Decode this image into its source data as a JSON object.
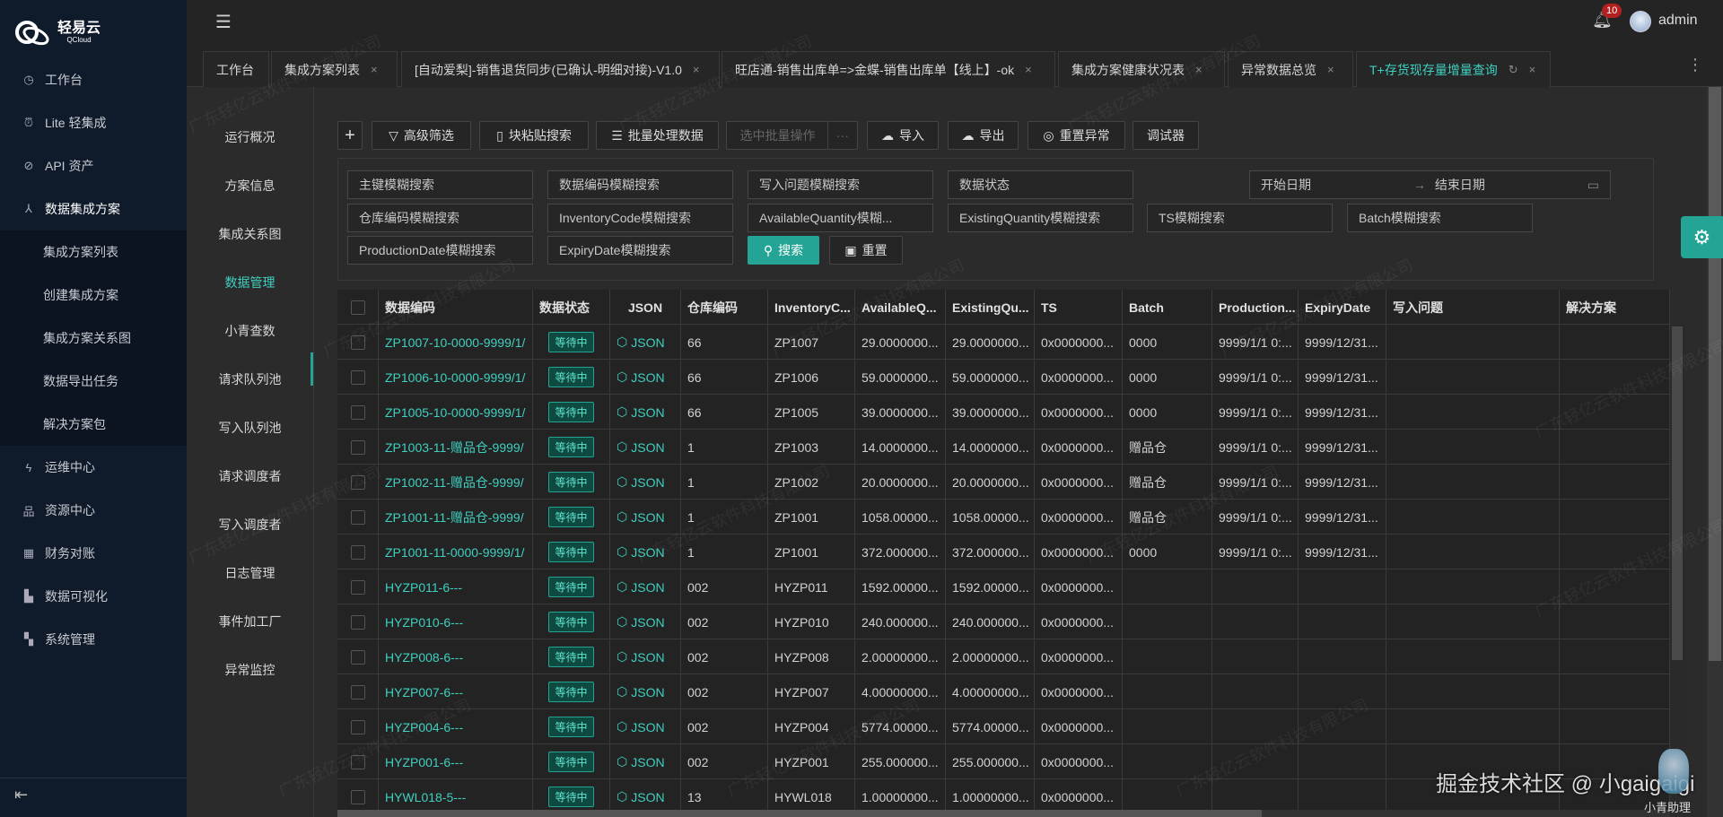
{
  "brand": {
    "name": "轻易云",
    "sub": "QCloud"
  },
  "sidebar": {
    "items": [
      {
        "label": "工作台",
        "icon": "clock-icon"
      },
      {
        "label": "Lite 轻集成",
        "icon": "alarm-icon"
      },
      {
        "label": "API 资产",
        "icon": "compass-icon"
      },
      {
        "label": "数据集成方案",
        "icon": "nodes-icon",
        "expanded": true
      },
      {
        "label": "集成方案列表",
        "sub": true
      },
      {
        "label": "创建集成方案",
        "sub": true
      },
      {
        "label": "集成方案关系图",
        "sub": true
      },
      {
        "label": "数据导出任务",
        "sub": true
      },
      {
        "label": "解决方案包",
        "sub": true
      },
      {
        "label": "运维中心",
        "icon": "bolt-icon"
      },
      {
        "label": "资源中心",
        "icon": "hierarchy-icon"
      },
      {
        "label": "财务对账",
        "icon": "calculator-icon"
      },
      {
        "label": "数据可视化",
        "icon": "area-chart-icon"
      },
      {
        "label": "系统管理",
        "icon": "grid-icon"
      }
    ]
  },
  "header": {
    "notifications": "10",
    "user": "admin"
  },
  "tabs": [
    {
      "label": "工作台",
      "closable": false
    },
    {
      "label": "集成方案列表",
      "closable": true
    },
    {
      "label": "[自动爱梨]-销售退货同步(已确认-明细对接)-V1.0",
      "closable": true
    },
    {
      "label": "旺店通-销售出库单=>金蝶-销售出库单【线上】-ok",
      "closable": true
    },
    {
      "label": "集成方案健康状况表",
      "closable": true
    },
    {
      "label": "异常数据总览",
      "closable": true
    },
    {
      "label": "T+存货现存量增量查询",
      "closable": true,
      "active": true
    }
  ],
  "subnav": {
    "active": "数据管理",
    "items": [
      "运行概况",
      "方案信息",
      "集成关系图",
      "数据管理",
      "小青查数",
      "请求队列池",
      "写入队列池",
      "请求调度者",
      "写入调度者",
      "日志管理",
      "事件加工厂",
      "异常监控"
    ]
  },
  "toolbar": {
    "add": "+",
    "advanced_filter": "高级筛选",
    "paste_search": "块粘贴搜索",
    "batch_process": "批量处理数据",
    "selected_batch": "选中批量操作",
    "more": "···",
    "import": "导入",
    "export": "导出",
    "reset_errors": "重置异常",
    "debugger": "调试器"
  },
  "filters": {
    "primary_key": "主键模糊搜索",
    "data_code": "数据编码模糊搜索",
    "write_issue": "写入问题模糊搜索",
    "data_status": "数据状态",
    "start_date": "开始日期",
    "date_sep": "→",
    "end_date": "结束日期",
    "warehouse_code": "仓库编码模糊搜索",
    "inventory_code": "InventoryCode模糊搜索",
    "available_qty": "AvailableQuantity模糊...",
    "existing_qty": "ExistingQuantity模糊搜索",
    "ts": "TS模糊搜索",
    "batch": "Batch模糊搜索",
    "production_date": "ProductionDate模糊搜索",
    "expiry_date": "ExpiryDate模糊搜索",
    "search": "搜索",
    "reset": "重置"
  },
  "table": {
    "columns": [
      "",
      "数据编码",
      "数据状态",
      "JSON",
      "仓库编码",
      "InventoryC...",
      "AvailableQ...",
      "ExistingQu...",
      "TS",
      "Batch",
      "Production...",
      "ExpiryDate",
      "写入问题",
      "解决方案"
    ],
    "rows": [
      [
        "ZP1007-10-0000-9999/1/",
        "等待中",
        "JSON",
        "66",
        "ZP1007",
        "29.0000000...",
        "29.0000000...",
        "0x0000000...",
        "0000",
        "9999/1/1 0:...",
        "9999/12/31...",
        "",
        ""
      ],
      [
        "ZP1006-10-0000-9999/1/",
        "等待中",
        "JSON",
        "66",
        "ZP1006",
        "59.0000000...",
        "59.0000000...",
        "0x0000000...",
        "0000",
        "9999/1/1 0:...",
        "9999/12/31...",
        "",
        ""
      ],
      [
        "ZP1005-10-0000-9999/1/",
        "等待中",
        "JSON",
        "66",
        "ZP1005",
        "39.0000000...",
        "39.0000000...",
        "0x0000000...",
        "0000",
        "9999/1/1 0:...",
        "9999/12/31...",
        "",
        ""
      ],
      [
        "ZP1003-11-赠品仓-9999/",
        "等待中",
        "JSON",
        "1",
        "ZP1003",
        "14.0000000...",
        "14.0000000...",
        "0x0000000...",
        "赠品仓",
        "9999/1/1 0:...",
        "9999/12/31...",
        "",
        ""
      ],
      [
        "ZP1002-11-赠品仓-9999/",
        "等待中",
        "JSON",
        "1",
        "ZP1002",
        "20.0000000...",
        "20.0000000...",
        "0x0000000...",
        "赠品仓",
        "9999/1/1 0:...",
        "9999/12/31...",
        "",
        ""
      ],
      [
        "ZP1001-11-赠品仓-9999/",
        "等待中",
        "JSON",
        "1",
        "ZP1001",
        "1058.00000...",
        "1058.00000...",
        "0x0000000...",
        "赠品仓",
        "9999/1/1 0:...",
        "9999/12/31...",
        "",
        ""
      ],
      [
        "ZP1001-11-0000-9999/1/",
        "等待中",
        "JSON",
        "1",
        "ZP1001",
        "372.000000...",
        "372.000000...",
        "0x0000000...",
        "0000",
        "9999/1/1 0:...",
        "9999/12/31...",
        "",
        ""
      ],
      [
        "HYZP011-6---",
        "等待中",
        "JSON",
        "002",
        "HYZP011",
        "1592.00000...",
        "1592.00000...",
        "0x0000000...",
        "",
        "",
        "",
        "",
        ""
      ],
      [
        "HYZP010-6---",
        "等待中",
        "JSON",
        "002",
        "HYZP010",
        "240.000000...",
        "240.000000...",
        "0x0000000...",
        "",
        "",
        "",
        "",
        ""
      ],
      [
        "HYZP008-6---",
        "等待中",
        "JSON",
        "002",
        "HYZP008",
        "2.00000000...",
        "2.00000000...",
        "0x0000000...",
        "",
        "",
        "",
        "",
        ""
      ],
      [
        "HYZP007-6---",
        "等待中",
        "JSON",
        "002",
        "HYZP007",
        "4.00000000...",
        "4.00000000...",
        "0x0000000...",
        "",
        "",
        "",
        "",
        ""
      ],
      [
        "HYZP004-6---",
        "等待中",
        "JSON",
        "002",
        "HYZP004",
        "5774.00000...",
        "5774.00000...",
        "0x0000000...",
        "",
        "",
        "",
        "",
        ""
      ],
      [
        "HYZP001-6---",
        "等待中",
        "JSON",
        "002",
        "HYZP001",
        "255.000000...",
        "255.000000...",
        "0x0000000...",
        "",
        "",
        "",
        "",
        ""
      ],
      [
        "HYWL018-5---",
        "等待中",
        "JSON",
        "13",
        "HYWL018",
        "1.00000000...",
        "1.00000000...",
        "0x0000000...",
        "",
        "",
        "",
        "",
        ""
      ]
    ]
  },
  "watermark": {
    "company": "广东轻亿云软件科技有限公司",
    "site": "掘金技术社区 @ 小gaigaigi",
    "assistant": "小青助理"
  },
  "colors": {
    "accent": "#23a495",
    "accent_text": "#3fd0c0",
    "sidebar": "#0f1a2a",
    "badge": "#b32020"
  }
}
